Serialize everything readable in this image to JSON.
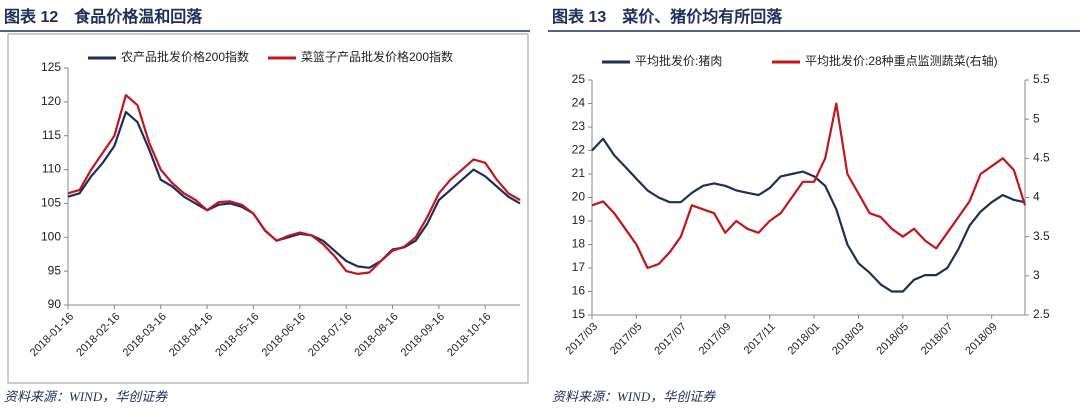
{
  "chart_data": [
    {
      "type": "line",
      "title": "图表 12　食品价格温和回落",
      "source": "资料来源：WIND，华创证券",
      "categories": [
        "2018-01-16",
        null,
        null,
        null,
        "2018-02-16",
        null,
        null,
        null,
        "2018-03-16",
        null,
        null,
        null,
        "2018-04-16",
        null,
        null,
        null,
        "2018-05-16",
        null,
        null,
        null,
        "2018-06-16",
        null,
        null,
        null,
        "2018-07-16",
        null,
        null,
        null,
        "2018-08-16",
        null,
        null,
        null,
        "2018-09-16",
        null,
        null,
        null,
        "2018-10-16",
        null,
        null,
        null
      ],
      "series": [
        {
          "name": "农产品批发价格200指数",
          "color": "#1f2d5a",
          "values": [
            106,
            106.5,
            109,
            111,
            113.5,
            118.5,
            117,
            113,
            108.5,
            107.5,
            106,
            105,
            104,
            104.8,
            105,
            104.5,
            103.5,
            101,
            99.5,
            100,
            100.5,
            100.3,
            99.5,
            98,
            96.5,
            95.7,
            95.5,
            96.5,
            98.2,
            98.5,
            99.5,
            102,
            105.5,
            107,
            108.5,
            110,
            109,
            107.5,
            106,
            105
          ]
        },
        {
          "name": "菜篮子产品批发价格200指数",
          "color": "#c0161c",
          "values": [
            106.5,
            107,
            110,
            112.5,
            115,
            121,
            119.5,
            114,
            110,
            108,
            106.5,
            105.5,
            104,
            105.2,
            105.3,
            104.8,
            103.5,
            101,
            99.5,
            100.2,
            100.7,
            100.3,
            99,
            97.2,
            95,
            94.6,
            94.8,
            96.5,
            98,
            98.6,
            100,
            103,
            106.5,
            108.5,
            110,
            111.5,
            111,
            108.5,
            106.5,
            105.5
          ]
        }
      ],
      "ylim": [
        90,
        125
      ],
      "yticks": [
        90,
        95,
        100,
        105,
        110,
        115,
        120,
        125
      ]
    },
    {
      "type": "line",
      "title": "图表 13　菜价、猪价均有所回落",
      "source": "资料来源：WIND，华创证券",
      "categories": [
        "2017/03",
        null,
        null,
        null,
        "2017/05",
        null,
        null,
        null,
        "2017/07",
        null,
        null,
        null,
        "2017/09",
        null,
        null,
        null,
        "2017/11",
        null,
        null,
        null,
        "2018/01",
        null,
        null,
        null,
        "2018/03",
        null,
        null,
        null,
        "2018/05",
        null,
        null,
        null,
        "2018/07",
        null,
        null,
        null,
        "2018/09",
        null,
        null,
        null
      ],
      "series": [
        {
          "name": "平均批发价:猪肉",
          "color": "#1f2d5a",
          "values": [
            22,
            22.5,
            21.8,
            21.3,
            20.8,
            20.3,
            20,
            19.8,
            19.8,
            20.2,
            20.5,
            20.6,
            20.5,
            20.3,
            20.2,
            20.1,
            20.4,
            20.9,
            21,
            21.1,
            20.9,
            20.5,
            19.5,
            18,
            17.2,
            16.8,
            16.3,
            16,
            16,
            16.5,
            16.7,
            16.7,
            17,
            17.8,
            18.8,
            19.4,
            19.8,
            20.1,
            19.9,
            19.8
          ]
        },
        {
          "name": "平均批发价:28种重点监测蔬菜(右轴)",
          "color": "#c0161c",
          "axis": "y2",
          "values": [
            3.9,
            3.95,
            3.8,
            3.6,
            3.4,
            3.1,
            3.15,
            3.3,
            3.5,
            3.9,
            3.85,
            3.8,
            3.55,
            3.7,
            3.6,
            3.55,
            3.7,
            3.8,
            4,
            4.2,
            4.2,
            4.5,
            5.2,
            4.3,
            4.05,
            3.8,
            3.75,
            3.6,
            3.5,
            3.6,
            3.45,
            3.35,
            3.55,
            3.75,
            3.95,
            4.3,
            4.4,
            4.5,
            4.35,
            3.9
          ]
        }
      ],
      "ylim": [
        15,
        25
      ],
      "yticks": [
        15,
        16,
        17,
        18,
        19,
        20,
        21,
        22,
        23,
        24,
        25
      ],
      "y2lim": [
        2.5,
        5.5
      ],
      "y2ticks": [
        2.5,
        3,
        3.5,
        4,
        4.5,
        5,
        5.5
      ]
    }
  ]
}
